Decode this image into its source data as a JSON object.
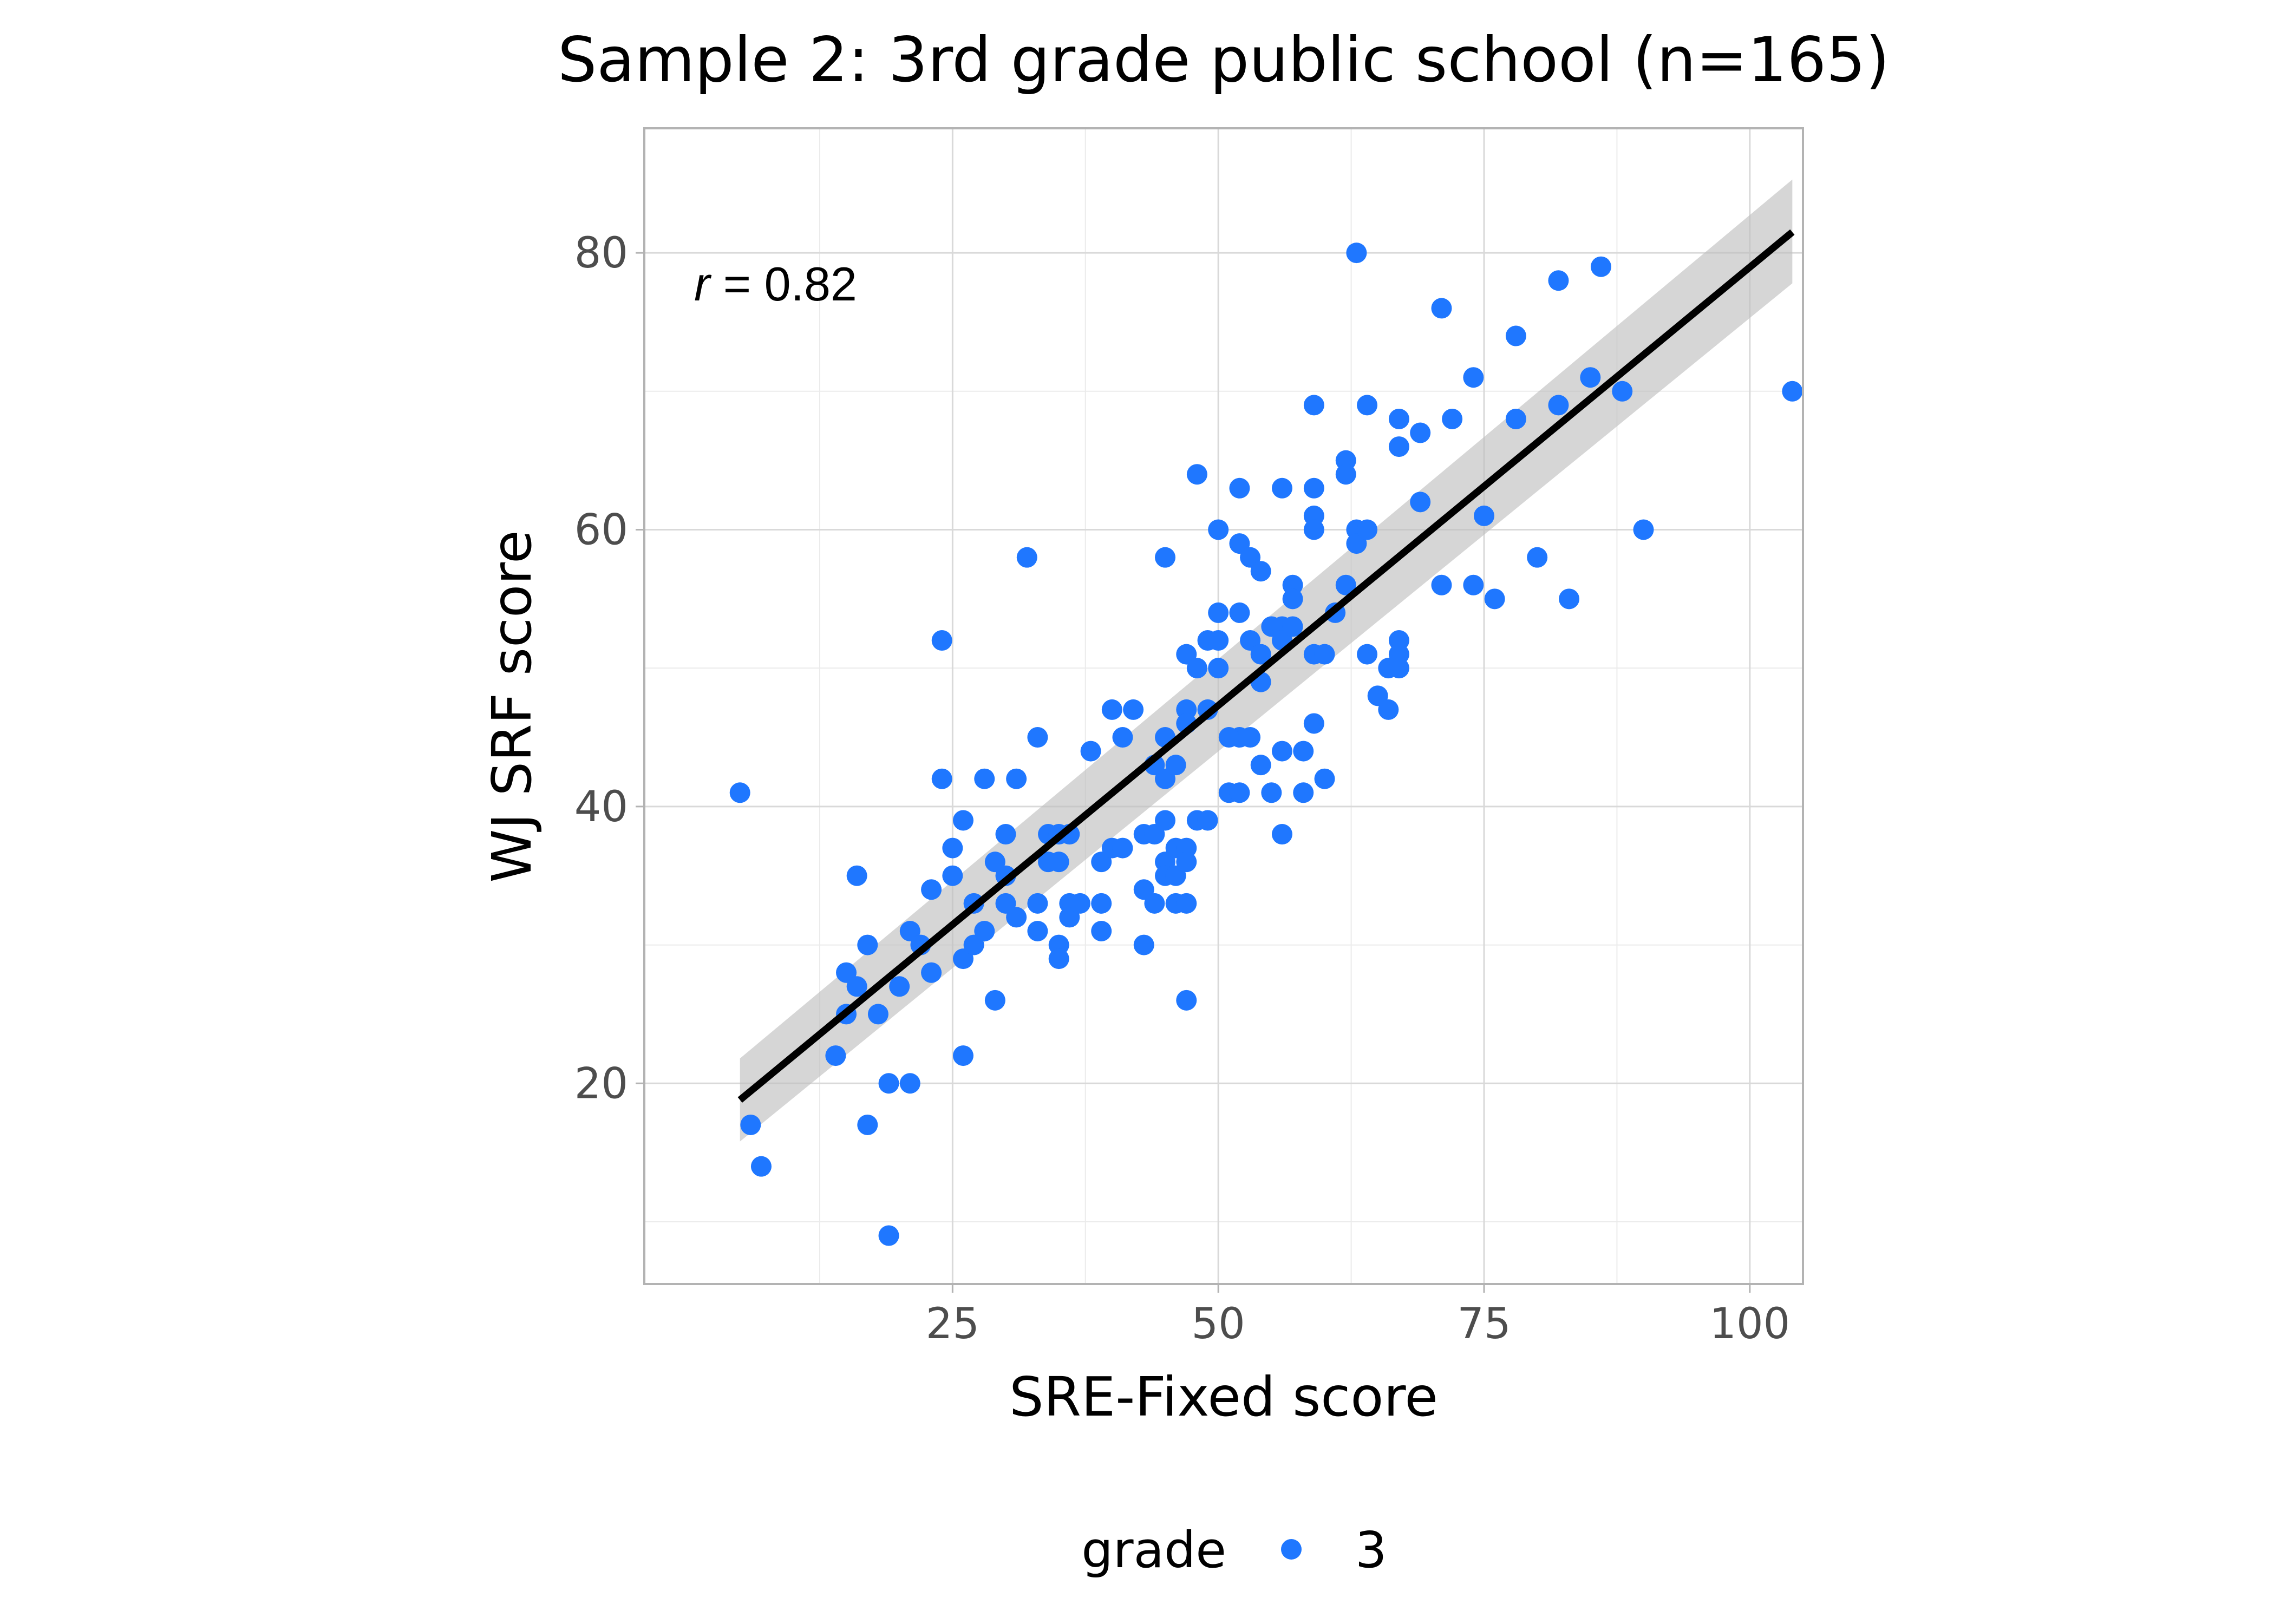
{
  "chart_data": {
    "type": "scatter",
    "title": "Sample 2: 3rd grade public school (n=165)",
    "xlabel": "SRE-Fixed score",
    "ylabel": "WJ SRF score",
    "xlim": [
      -4,
      105
    ],
    "ylim": [
      5.5,
      89
    ],
    "x_ticks": [
      25,
      50,
      75,
      100
    ],
    "y_ticks": [
      20,
      40,
      60,
      80
    ],
    "x_tick_labels": [
      "25",
      "50",
      "75",
      "100"
    ],
    "y_tick_labels": [
      "20",
      "40",
      "60",
      "80"
    ],
    "grid": true,
    "annotation": {
      "var": "r",
      "text": " = 0.82",
      "x": 5,
      "y": 77
    },
    "legend": {
      "title": "grade",
      "position": "bottom",
      "entries": [
        "3"
      ]
    },
    "colors": {
      "points": "#1f77ff",
      "fit_line": "#000000",
      "ribbon": "#bdbdbd"
    },
    "fit": {
      "method": "linear",
      "x": [
        5,
        104
      ],
      "y": [
        18.8,
        81.5
      ],
      "ci_lower": [
        15.8,
        77.8
      ],
      "ci_upper": [
        21.8,
        85.3
      ]
    },
    "series": [
      {
        "name": "3",
        "points": [
          [
            5,
            41
          ],
          [
            6,
            17
          ],
          [
            7,
            14
          ],
          [
            14,
            22
          ],
          [
            15,
            28
          ],
          [
            15,
            25
          ],
          [
            16,
            35
          ],
          [
            16,
            27
          ],
          [
            17,
            30
          ],
          [
            17,
            17
          ],
          [
            19,
            20
          ],
          [
            19,
            9
          ],
          [
            20,
            27
          ],
          [
            21,
            31
          ],
          [
            21,
            20
          ],
          [
            23,
            34
          ],
          [
            23,
            28
          ],
          [
            24,
            52
          ],
          [
            24,
            42
          ],
          [
            25,
            37
          ],
          [
            25,
            35
          ],
          [
            26,
            39
          ],
          [
            26,
            29
          ],
          [
            26,
            22
          ],
          [
            27,
            33
          ],
          [
            27,
            30
          ],
          [
            28,
            42
          ],
          [
            28,
            31
          ],
          [
            29,
            26
          ],
          [
            30,
            38
          ],
          [
            30,
            35
          ],
          [
            30,
            33
          ],
          [
            31,
            42
          ],
          [
            31,
            32
          ],
          [
            32,
            58
          ],
          [
            33,
            45
          ],
          [
            33,
            33
          ],
          [
            33,
            31
          ],
          [
            34,
            38
          ],
          [
            35,
            38
          ],
          [
            35,
            36
          ],
          [
            35,
            30
          ],
          [
            35,
            29
          ],
          [
            36,
            38
          ],
          [
            36,
            33
          ],
          [
            36,
            32
          ],
          [
            37,
            33
          ],
          [
            38,
            44
          ],
          [
            39,
            36
          ],
          [
            39,
            33
          ],
          [
            39,
            31
          ],
          [
            40,
            47
          ],
          [
            40,
            37
          ],
          [
            41,
            45
          ],
          [
            41,
            37
          ],
          [
            42,
            47
          ],
          [
            43,
            38
          ],
          [
            43,
            34
          ],
          [
            43,
            30
          ],
          [
            44,
            38
          ],
          [
            44,
            33
          ],
          [
            45,
            58
          ],
          [
            45,
            45
          ],
          [
            45,
            42
          ],
          [
            45,
            39
          ],
          [
            45,
            36
          ],
          [
            45,
            35
          ],
          [
            46,
            37
          ],
          [
            46,
            35
          ],
          [
            46,
            33
          ],
          [
            46,
            43
          ],
          [
            47,
            51
          ],
          [
            47,
            47
          ],
          [
            47,
            46
          ],
          [
            47,
            37
          ],
          [
            47,
            36
          ],
          [
            47,
            33
          ],
          [
            47,
            26
          ],
          [
            48,
            64
          ],
          [
            48,
            50
          ],
          [
            48,
            39
          ],
          [
            49,
            52
          ],
          [
            49,
            47
          ],
          [
            49,
            39
          ],
          [
            50,
            60
          ],
          [
            50,
            54
          ],
          [
            50,
            52
          ],
          [
            50,
            50
          ],
          [
            51,
            41
          ],
          [
            52,
            63
          ],
          [
            52,
            59
          ],
          [
            52,
            54
          ],
          [
            52,
            45
          ],
          [
            52,
            41
          ],
          [
            53,
            58
          ],
          [
            53,
            52
          ],
          [
            53,
            45
          ],
          [
            54,
            57
          ],
          [
            54,
            51
          ],
          [
            54,
            49
          ],
          [
            54,
            43
          ],
          [
            55,
            53
          ],
          [
            55,
            41
          ],
          [
            56,
            63
          ],
          [
            56,
            53
          ],
          [
            56,
            52
          ],
          [
            56,
            44
          ],
          [
            56,
            38
          ],
          [
            57,
            56
          ],
          [
            57,
            55
          ],
          [
            57,
            53
          ],
          [
            58,
            44
          ],
          [
            58,
            41
          ],
          [
            59,
            69
          ],
          [
            59,
            63
          ],
          [
            59,
            61
          ],
          [
            59,
            60
          ],
          [
            59,
            51
          ],
          [
            59,
            46
          ],
          [
            60,
            51
          ],
          [
            60,
            42
          ],
          [
            62,
            65
          ],
          [
            62,
            64
          ],
          [
            62,
            56
          ],
          [
            63,
            80
          ],
          [
            63,
            60
          ],
          [
            63,
            59
          ],
          [
            64,
            69
          ],
          [
            64,
            60
          ],
          [
            64,
            51
          ],
          [
            65,
            48
          ],
          [
            66,
            50
          ],
          [
            66,
            47
          ],
          [
            67,
            68
          ],
          [
            67,
            66
          ],
          [
            67,
            52
          ],
          [
            67,
            51
          ],
          [
            67,
            50
          ],
          [
            69,
            67
          ],
          [
            71,
            76
          ],
          [
            71,
            56
          ],
          [
            72,
            68
          ],
          [
            74,
            71
          ],
          [
            74,
            56
          ],
          [
            75,
            61
          ],
          [
            76,
            55
          ],
          [
            78,
            74
          ],
          [
            78,
            68
          ],
          [
            80,
            58
          ],
          [
            82,
            78
          ],
          [
            82,
            69
          ],
          [
            83,
            55
          ],
          [
            85,
            71
          ],
          [
            86,
            79
          ],
          [
            88,
            70
          ],
          [
            90,
            60
          ],
          [
            104,
            70
          ],
          [
            51,
            45
          ],
          [
            44,
            43
          ],
          [
            34,
            36
          ],
          [
            29,
            36
          ],
          [
            22,
            30
          ],
          [
            18,
            25
          ],
          [
            61,
            54
          ],
          [
            69,
            62
          ]
        ]
      }
    ]
  }
}
